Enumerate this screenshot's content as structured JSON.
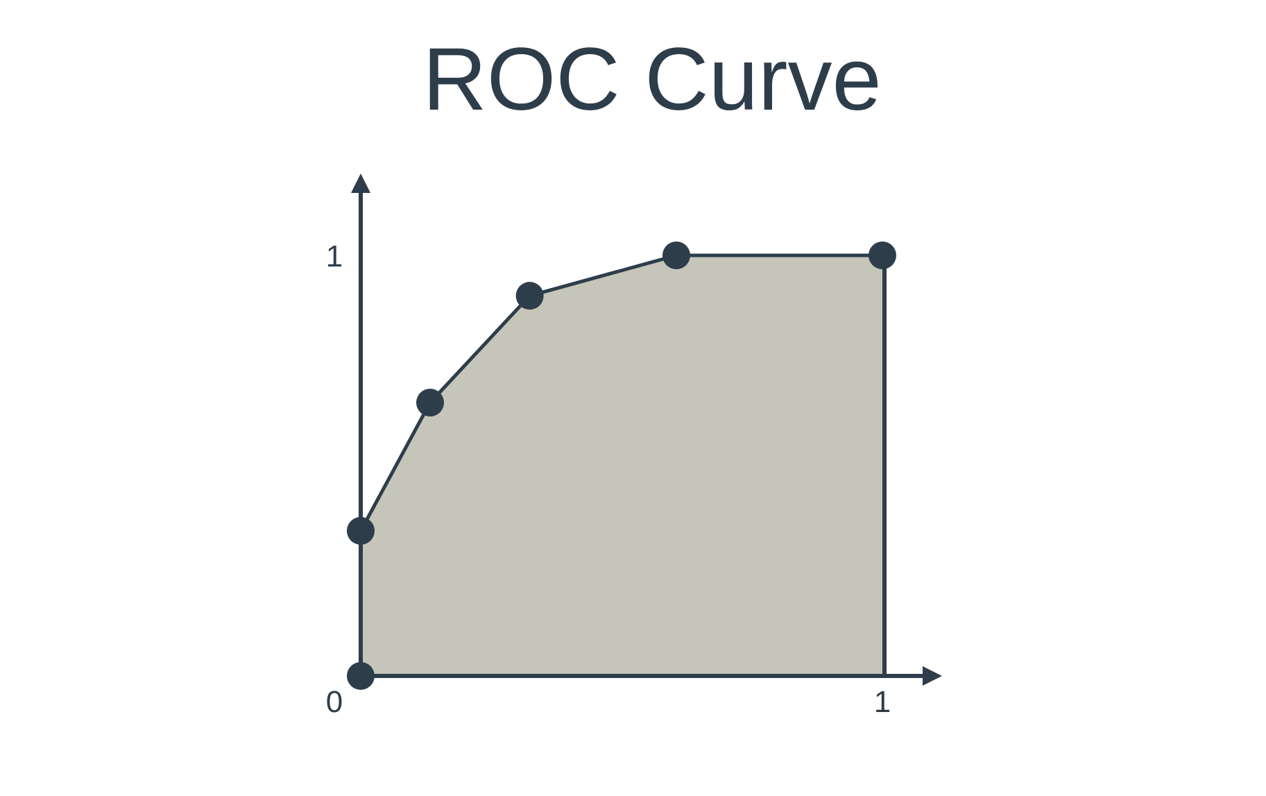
{
  "chart_data": {
    "type": "area",
    "title": "ROC Curve",
    "xlabel": "",
    "ylabel": "",
    "xlim": [
      0,
      1
    ],
    "ylim": [
      0,
      1
    ],
    "x_ticks": [
      {
        "value": 0,
        "label": "0"
      },
      {
        "value": 1,
        "label": "1"
      }
    ],
    "y_ticks": [
      {
        "value": 1,
        "label": "1"
      }
    ],
    "points": [
      {
        "x": 0.0,
        "y": 0.0
      },
      {
        "x": 0.0,
        "y": 0.345
      },
      {
        "x": 0.133,
        "y": 0.65
      },
      {
        "x": 0.324,
        "y": 0.904
      },
      {
        "x": 0.605,
        "y": 1.0
      },
      {
        "x": 1.0,
        "y": 1.0
      }
    ],
    "grid": false,
    "legend": "none",
    "colors": {
      "fill": "#c5c5b9",
      "line": "#2e3d4a",
      "text": "#2e3d4a",
      "background": "#ffffff"
    }
  }
}
